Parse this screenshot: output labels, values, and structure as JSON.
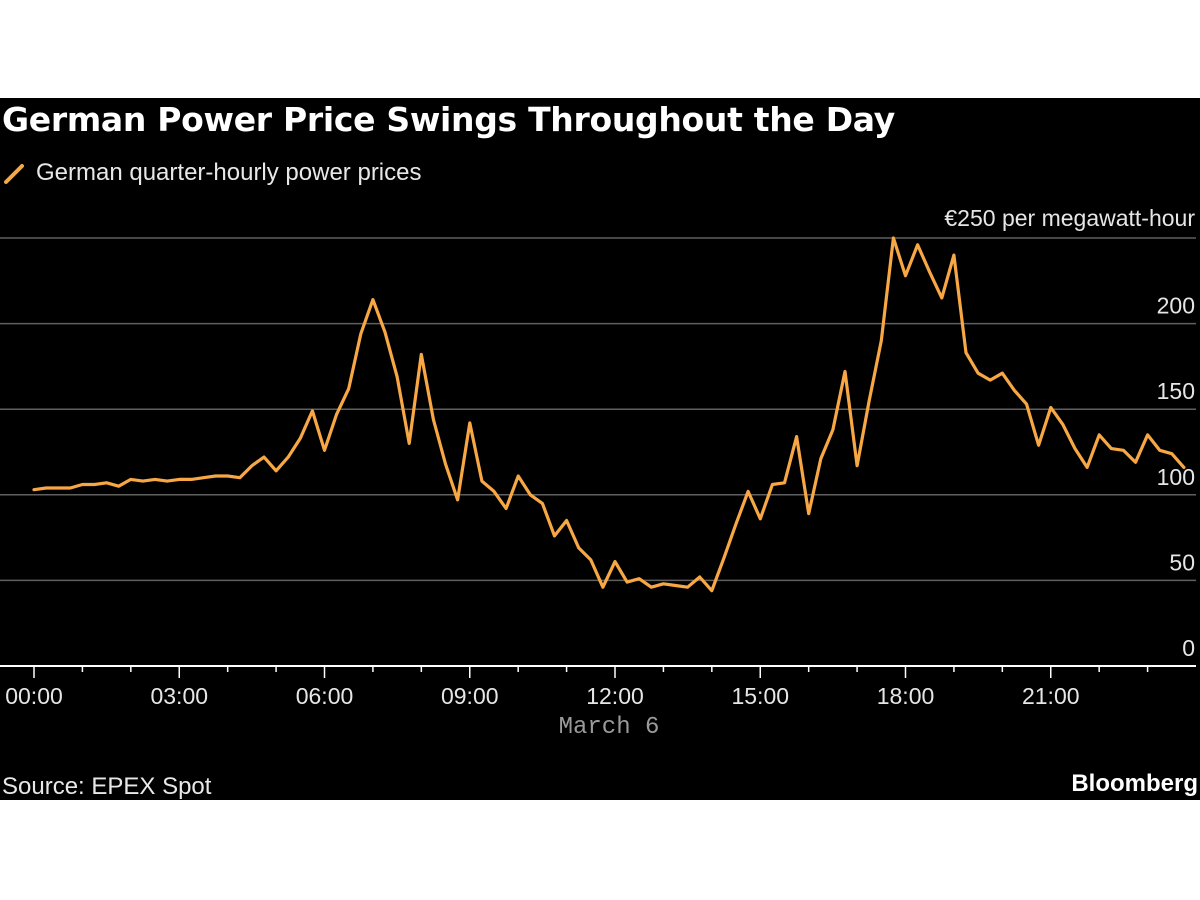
{
  "chart_data": {
    "type": "line",
    "title": "German Power Price Swings Throughout the Day",
    "legend": [
      "German quarter-hourly power prices"
    ],
    "ylabel": "€250 per megawatt-hour",
    "y_unit_label": "€250 per megawatt-hour",
    "ylim": [
      0,
      250
    ],
    "y_ticks": [
      0,
      50,
      100,
      150,
      200,
      250
    ],
    "y_tick_labels": [
      "0",
      "50",
      "100",
      "150",
      "200"
    ],
    "xlim": [
      0,
      24
    ],
    "x_ticks": [
      0,
      3,
      6,
      9,
      12,
      15,
      18,
      21
    ],
    "x_tick_labels": [
      "00:00",
      "03:00",
      "06:00",
      "09:00",
      "12:00",
      "15:00",
      "18:00",
      "21:00"
    ],
    "xlabel": "March 6",
    "grid": true,
    "series": [
      {
        "name": "German quarter-hourly power prices",
        "color": "#f7a743",
        "x": [
          0,
          0.25,
          0.5,
          0.75,
          1,
          1.25,
          1.5,
          1.75,
          2,
          2.25,
          2.5,
          2.75,
          3,
          3.25,
          3.5,
          3.75,
          4,
          4.25,
          4.5,
          4.75,
          5,
          5.25,
          5.5,
          5.75,
          6,
          6.25,
          6.5,
          6.75,
          7,
          7.25,
          7.5,
          7.75,
          8,
          8.25,
          8.5,
          8.75,
          9,
          9.25,
          9.5,
          9.75,
          10,
          10.25,
          10.5,
          10.75,
          11,
          11.25,
          11.5,
          11.75,
          12,
          12.25,
          12.5,
          12.75,
          13,
          13.25,
          13.5,
          13.75,
          14,
          14.25,
          14.5,
          14.75,
          15,
          15.25,
          15.5,
          15.75,
          16,
          16.25,
          16.5,
          16.75,
          17,
          17.25,
          17.5,
          17.75,
          18,
          18.25,
          18.5,
          18.75,
          19,
          19.25,
          19.5,
          19.75,
          20,
          20.25,
          20.5,
          20.75,
          21,
          21.25,
          21.5,
          21.75,
          22,
          22.25,
          22.5,
          22.75,
          23,
          23.25,
          23.5,
          23.75
        ],
        "values": [
          103,
          104,
          104,
          104,
          106,
          106,
          107,
          105,
          109,
          108,
          109,
          108,
          109,
          109,
          110,
          111,
          111,
          110,
          117,
          122,
          114,
          122,
          133,
          149,
          126,
          147,
          162,
          194,
          214,
          195,
          169,
          130,
          182,
          144,
          118,
          97,
          142,
          108,
          102,
          92,
          111,
          100,
          95,
          76,
          85,
          69,
          62,
          46,
          61,
          49,
          51,
          46,
          48,
          47,
          46,
          52,
          44,
          63,
          83,
          102,
          86,
          106,
          107,
          134,
          89,
          121,
          138,
          172,
          117,
          155,
          190,
          250,
          228,
          246,
          230,
          215,
          240,
          183,
          171,
          167,
          171,
          161,
          153,
          129,
          151,
          141,
          127,
          116,
          135,
          127,
          126,
          119,
          135,
          126,
          124,
          116
        ]
      }
    ]
  },
  "colors": {
    "background": "#000000",
    "line": "#f7a743",
    "gridline": "#5f5f5f",
    "axis": "#ffffff"
  },
  "legend_icon": "diagonal-line-swatch",
  "footer": {
    "source": "Source: EPEX Spot",
    "brand": "Bloomberg"
  }
}
